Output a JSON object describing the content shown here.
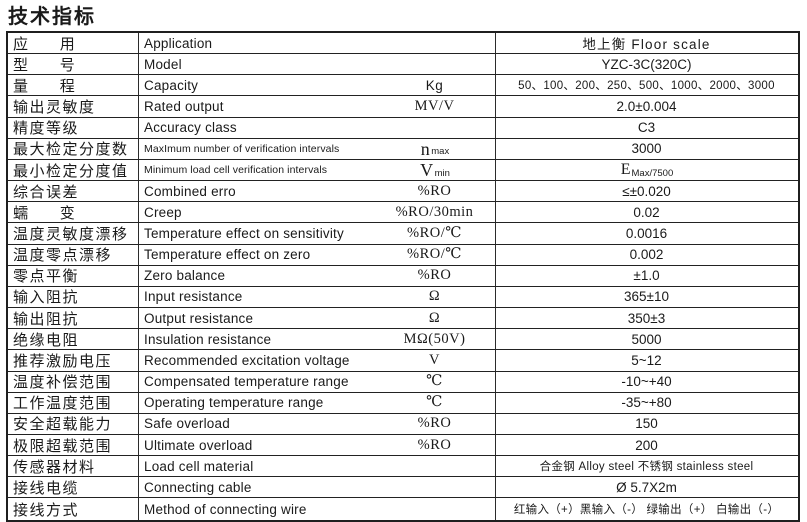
{
  "title": "技术指标",
  "colors": {
    "text": "#1a1a1a",
    "border": "#222222",
    "background": "#ffffff"
  },
  "table": {
    "rows": [
      {
        "cn": "应 用",
        "en": "Application",
        "unit": "",
        "value": "地上衡  Floor scale",
        "value_spaced": true
      },
      {
        "cn": "型 号",
        "en": "Model",
        "unit": "",
        "value": "YZC-3C(320C)"
      },
      {
        "cn": "量 程",
        "en": "Capacity",
        "unit": "Kg",
        "unit_sans": true,
        "value": "50、100、200、250、500、1000、2000、3000",
        "value_small": true
      },
      {
        "cn": "输出灵敏度",
        "en": "Rated output",
        "unit": "MV/V",
        "value": "2.0±0.004"
      },
      {
        "cn": "精度等级",
        "en": "Accuracy class",
        "unit": "",
        "value": "C3"
      },
      {
        "cn": "最大检定分度数",
        "en": "MaxImum number of verification intervals",
        "en_small": true,
        "unit": "n",
        "unit_sub": "max",
        "value": "3000"
      },
      {
        "cn": "最小检定分度值",
        "en": "Minimum load cell verification intervals",
        "en_small": true,
        "unit": "V",
        "unit_sub": "min",
        "value": "E",
        "value_sub": "Max/7500"
      },
      {
        "cn": "综合误差",
        "en": "Combined erro",
        "unit": "%RO",
        "value": "≤±0.020"
      },
      {
        "cn": "蠕 变",
        "en": "Creep",
        "unit": "%RO/30min",
        "value": "0.02"
      },
      {
        "cn": "温度灵敏度漂移",
        "en": "Temperature effect on sensitivity",
        "unit": "%RO/℃",
        "value": "0.0016"
      },
      {
        "cn": "温度零点漂移",
        "en": "Temperature effect on zero",
        "unit": "%RO/℃",
        "value": "0.002"
      },
      {
        "cn": "零点平衡",
        "en": "Zero balance",
        "unit": "%RO",
        "value": "±1.0"
      },
      {
        "cn": "输入阻抗",
        "en": "Input resistance",
        "unit": "Ω",
        "value": "365±10"
      },
      {
        "cn": "输出阻抗",
        "en": "Output resistance",
        "unit": "Ω",
        "value": "350±3"
      },
      {
        "cn": "绝缘电阻",
        "en": "Insulation resistance",
        "unit": "MΩ(50V)",
        "value": "5000"
      },
      {
        "cn": "推荐激励电压",
        "en": "Recommended excitation voltage",
        "unit": "V",
        "value": "5~12"
      },
      {
        "cn": "温度补偿范围",
        "en": "Compensated temperature range",
        "unit": "℃",
        "value": "-10~+40"
      },
      {
        "cn": "工作温度范围",
        "en": "Operating temperature range",
        "unit": "℃",
        "value": "-35~+80"
      },
      {
        "cn": "安全超载能力",
        "en": "Safe overload",
        "unit": "%RO",
        "value": "150"
      },
      {
        "cn": "极限超载范围",
        "en": "Ultimate overload",
        "unit": "%RO",
        "value": "200"
      },
      {
        "cn": "传感器材料",
        "en": "Load cell material",
        "unit": "",
        "value": "合金钢 Alloy steel  不锈钢 stainless steel",
        "value_small": true
      },
      {
        "cn": "接线电缆",
        "en": "Connecting cable",
        "unit": "",
        "value": "Ø 5.7X2m"
      },
      {
        "cn": "接线方式",
        "en": "Method of connecting wire",
        "unit": "",
        "value": "红输入（+）黑输入（-） 绿输出（+） 白输出（-）",
        "value_small": true
      }
    ]
  }
}
